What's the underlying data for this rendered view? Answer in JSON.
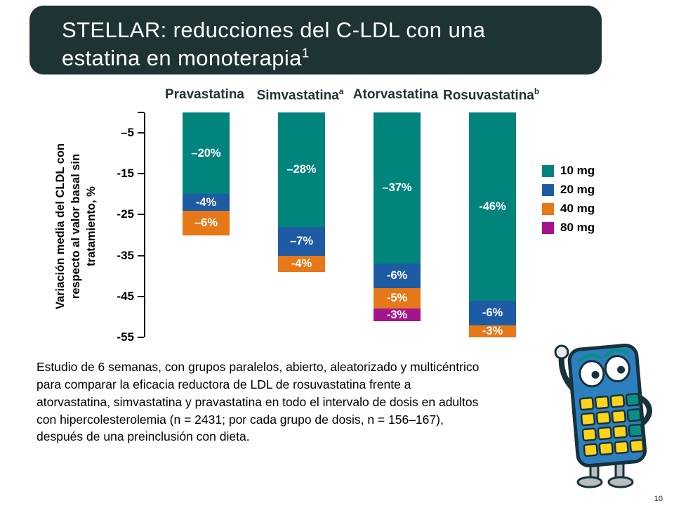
{
  "slide": {
    "title_line1": "STELLAR: reducciones del C-LDL con una",
    "title_line2": "estatina en monoterapia",
    "title_superscript": "1",
    "footnote": "Estudio de 6 semanas, con grupos paralelos, abierto, aleatorizado y multicéntrico para comparar la eficacia reductora de LDL de rosuvastatina frente a atorvastatina, simvastatina y pravastatina en todo el intervalo de dosis en adultos con hipercolesterolemia (n = 2431; por cada grupo de dosis, n = 156–167), después de una preinclusión con dieta.",
    "page_number": "10",
    "colors": {
      "banner_bg": "#1e3434",
      "heading_text": "#1e3434"
    }
  },
  "chart_data": {
    "type": "bar",
    "stacked": true,
    "direction": "negative",
    "title": "",
    "xlabel": "",
    "ylabel": "Variación media del CLDL con respecto al valor basal sin tratamiento, %",
    "ylim": [
      -55,
      0
    ],
    "grid": false,
    "yticks": [
      {
        "label": "–5",
        "value": -5
      },
      {
        "label": "-15",
        "value": -15
      },
      {
        "label": "-25",
        "value": -25
      },
      {
        "label": "-35",
        "value": -35
      },
      {
        "label": "-45",
        "value": -45
      },
      {
        "label": "-55",
        "value": -55
      }
    ],
    "categories": [
      {
        "label": "Pravastatina",
        "sup": ""
      },
      {
        "label": "Simvastatina",
        "sup": "a"
      },
      {
        "label": "Atorvastatina",
        "sup": ""
      },
      {
        "label": "Rosuvastatina",
        "sup": "b"
      }
    ],
    "series": [
      {
        "name": "10 mg",
        "color": "#00847b",
        "values": [
          -20,
          -28,
          -37,
          -46
        ],
        "labels": [
          "–20%",
          "–28%",
          "–37%",
          "-46%"
        ]
      },
      {
        "name": "20 mg",
        "color": "#1d5ca4",
        "values": [
          -4,
          -7,
          -6,
          -6
        ],
        "labels": [
          "-4%",
          "–7%",
          "-6%",
          "-6%"
        ]
      },
      {
        "name": "40 mg",
        "color": "#e67817",
        "values": [
          -6,
          -4,
          -5,
          -3
        ],
        "labels": [
          "–6%",
          "-4%",
          "-5%",
          "-3%"
        ]
      },
      {
        "name": "80 mg",
        "color": "#a6148c",
        "values": [
          null,
          null,
          -3,
          null
        ],
        "labels": [
          null,
          null,
          "-3%",
          null
        ]
      }
    ],
    "legend": {
      "position": "right",
      "items": [
        "10 mg",
        "20 mg",
        "40 mg",
        "80 mg"
      ]
    }
  },
  "mascot": {
    "icon": "calculator-mascot-illustration"
  }
}
